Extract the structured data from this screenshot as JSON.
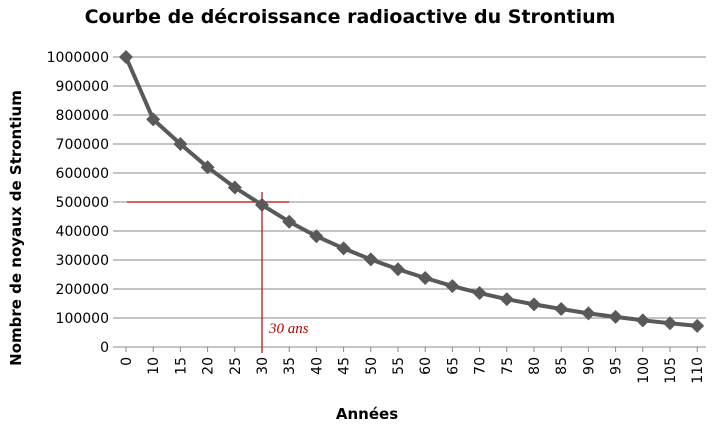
{
  "chart_data": {
    "type": "line",
    "title": "Courbe de décroissance radioactive du Strontium",
    "xlabel": "Années",
    "ylabel": "Nombre de noyaux de Strontium",
    "x_categories": [
      "0",
      "10",
      "15",
      "20",
      "25",
      "30",
      "35",
      "40",
      "45",
      "50",
      "55",
      "60",
      "65",
      "70",
      "75",
      "80",
      "85",
      "90",
      "95",
      "100",
      "105",
      "110"
    ],
    "y_ticks": [
      "0",
      "100000",
      "200000",
      "300000",
      "400000",
      "500000",
      "600000",
      "700000",
      "800000",
      "900000",
      "1000000"
    ],
    "ylim": [
      0,
      1000000
    ],
    "grid": true,
    "series": [
      {
        "values": [
          1000000,
          785000,
          700000,
          620000,
          550000,
          490000,
          432000,
          382000,
          340000,
          302000,
          268000,
          238000,
          210000,
          186000,
          165000,
          147000,
          131000,
          116000,
          104000,
          92000,
          82000,
          73000
        ],
        "color": "#595959",
        "marker": "diamond"
      }
    ],
    "annotation": {
      "text": "30 ans",
      "x_category": "30",
      "y_value": 500000,
      "color": "#c00000"
    }
  }
}
